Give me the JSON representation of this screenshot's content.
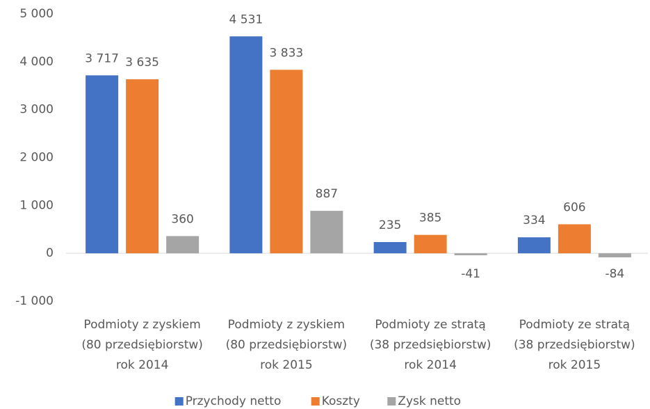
{
  "chart_data": {
    "type": "bar",
    "categories": [
      [
        "Podmioty z zyskiem",
        "(80 przedsiębiorstw)",
        "rok 2014"
      ],
      [
        "Podmioty z zyskiem",
        "(80 przedsiębiorstw)",
        "rok 2015"
      ],
      [
        "Podmioty ze stratą",
        "(38 przedsiębiorstw)",
        "rok 2014"
      ],
      [
        "Podmioty ze stratą",
        "(38 przedsiębiorstw)",
        "rok 2015"
      ]
    ],
    "series": [
      {
        "name": "Przychody netto",
        "color": "#4472c4",
        "values": [
          3717,
          4531,
          235,
          334
        ],
        "value_labels": [
          "3 717",
          "4 531",
          "235",
          "334"
        ]
      },
      {
        "name": "Koszty",
        "color": "#ed7d31",
        "values": [
          3635,
          3833,
          385,
          606
        ],
        "value_labels": [
          "3 635",
          "3 833",
          "385",
          "606"
        ]
      },
      {
        "name": "Zysk netto",
        "color": "#a5a5a5",
        "values": [
          360,
          887,
          -41,
          -84
        ],
        "value_labels": [
          "360",
          "887",
          "-41",
          "-84"
        ]
      }
    ],
    "ylim": [
      -1000,
      5000
    ],
    "yticks": [
      {
        "value": -1000,
        "label": "-1 000"
      },
      0,
      {
        "value": 1000,
        "label": "1 000"
      },
      {
        "value": 2000,
        "label": "2 000"
      },
      {
        "value": 3000,
        "label": "3 000"
      },
      {
        "value": 4000,
        "label": "4 000"
      },
      {
        "value": 5000,
        "label": "5 000"
      }
    ],
    "legend": "bottom"
  }
}
